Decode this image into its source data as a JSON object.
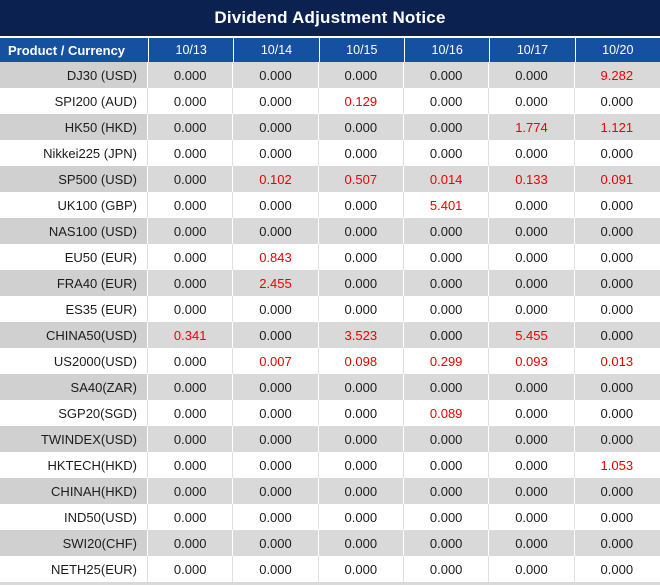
{
  "title": "Dividend Adjustment Notice",
  "colors": {
    "title_bg": "#0b2150",
    "header_bg": "#1651a1",
    "row_alt_bg": "#d9d9d9",
    "row_alt_label_bg": "#d0d0d0",
    "nonzero_value_red": "#ee0000"
  },
  "table": {
    "header": {
      "product_col": "Product / Currency",
      "dates": [
        "10/13",
        "10/14",
        "10/15",
        "10/16",
        "10/17",
        "10/20"
      ]
    },
    "rows": [
      {
        "product": "DJ30 (USD)",
        "values": [
          "0.000",
          "0.000",
          "0.000",
          "0.000",
          "0.000",
          "9.282"
        ]
      },
      {
        "product": "SPI200 (AUD)",
        "values": [
          "0.000",
          "0.000",
          "0.129",
          "0.000",
          "0.000",
          "0.000"
        ]
      },
      {
        "product": "HK50 (HKD)",
        "values": [
          "0.000",
          "0.000",
          "0.000",
          "0.000",
          "1.774",
          "1.121"
        ]
      },
      {
        "product": "Nikkei225 (JPN)",
        "values": [
          "0.000",
          "0.000",
          "0.000",
          "0.000",
          "0.000",
          "0.000"
        ]
      },
      {
        "product": "SP500 (USD)",
        "values": [
          "0.000",
          "0.102",
          "0.507",
          "0.014",
          "0.133",
          "0.091"
        ]
      },
      {
        "product": "UK100 (GBP)",
        "values": [
          "0.000",
          "0.000",
          "0.000",
          "5.401",
          "0.000",
          "0.000"
        ]
      },
      {
        "product": "NAS100 (USD)",
        "values": [
          "0.000",
          "0.000",
          "0.000",
          "0.000",
          "0.000",
          "0.000"
        ]
      },
      {
        "product": "EU50 (EUR)",
        "values": [
          "0.000",
          "0.843",
          "0.000",
          "0.000",
          "0.000",
          "0.000"
        ]
      },
      {
        "product": "FRA40 (EUR)",
        "values": [
          "0.000",
          "2.455",
          "0.000",
          "0.000",
          "0.000",
          "0.000"
        ]
      },
      {
        "product": "ES35 (EUR)",
        "values": [
          "0.000",
          "0.000",
          "0.000",
          "0.000",
          "0.000",
          "0.000"
        ]
      },
      {
        "product": "CHINA50(USD)",
        "values": [
          "0.341",
          "0.000",
          "3.523",
          "0.000",
          "5.455",
          "0.000"
        ]
      },
      {
        "product": "US2000(USD)",
        "values": [
          "0.000",
          "0.007",
          "0.098",
          "0.299",
          "0.093",
          "0.013"
        ]
      },
      {
        "product": "SA40(ZAR)",
        "values": [
          "0.000",
          "0.000",
          "0.000",
          "0.000",
          "0.000",
          "0.000"
        ]
      },
      {
        "product": "SGP20(SGD)",
        "values": [
          "0.000",
          "0.000",
          "0.000",
          "0.089",
          "0.000",
          "0.000"
        ]
      },
      {
        "product": "TWINDEX(USD)",
        "values": [
          "0.000",
          "0.000",
          "0.000",
          "0.000",
          "0.000",
          "0.000"
        ]
      },
      {
        "product": "HKTECH(HKD)",
        "values": [
          "0.000",
          "0.000",
          "0.000",
          "0.000",
          "0.000",
          "1.053"
        ]
      },
      {
        "product": "CHINAH(HKD)",
        "values": [
          "0.000",
          "0.000",
          "0.000",
          "0.000",
          "0.000",
          "0.000"
        ]
      },
      {
        "product": "IND50(USD)",
        "values": [
          "0.000",
          "0.000",
          "0.000",
          "0.000",
          "0.000",
          "0.000"
        ]
      },
      {
        "product": "SWI20(CHF)",
        "values": [
          "0.000",
          "0.000",
          "0.000",
          "0.000",
          "0.000",
          "0.000"
        ]
      },
      {
        "product": "NETH25(EUR)",
        "values": [
          "0.000",
          "0.000",
          "0.000",
          "0.000",
          "0.000",
          "0.000"
        ]
      }
    ]
  }
}
